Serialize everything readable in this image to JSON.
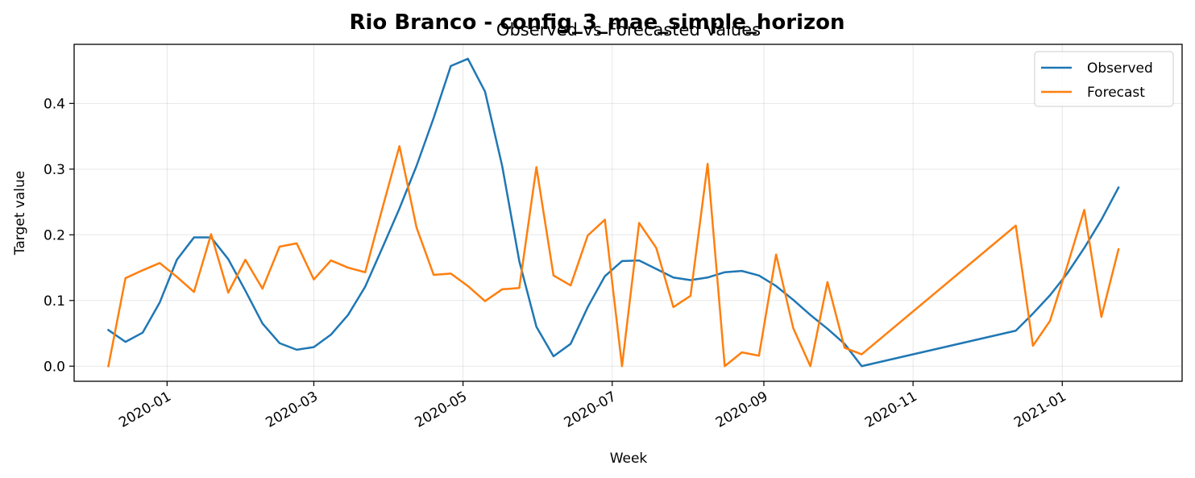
{
  "figure": {
    "suptitle": "Rio Branco - config_3_mae_simple_horizon",
    "title": "Observed vs Forecasted Values"
  },
  "chart_data": {
    "type": "line",
    "xlabel": "Week",
    "ylabel": "Target value",
    "x_axis_type": "date",
    "xlim": [
      "2019-11-24",
      "2021-02-19"
    ],
    "ylim": [
      -0.023,
      0.49
    ],
    "x_ticks": [
      "2020-01-01",
      "2020-03-01",
      "2020-05-01",
      "2020-07-01",
      "2020-09-01",
      "2020-11-01",
      "2021-01-01"
    ],
    "x_tick_labels": [
      "2020-01",
      "2020-03",
      "2020-05",
      "2020-07",
      "2020-09",
      "2020-11",
      "2021-01"
    ],
    "y_ticks": [
      0.0,
      0.1,
      0.2,
      0.3,
      0.4
    ],
    "y_tick_labels": [
      "0.0",
      "0.1",
      "0.2",
      "0.3",
      "0.4"
    ],
    "grid": true,
    "legend_position": "upper right",
    "series": [
      {
        "name": "Observed",
        "color": "#1f77b4",
        "x": [
          "2019-12-08",
          "2019-12-15",
          "2019-12-22",
          "2019-12-29",
          "2020-01-05",
          "2020-01-12",
          "2020-01-19",
          "2020-01-26",
          "2020-02-02",
          "2020-02-09",
          "2020-02-16",
          "2020-02-23",
          "2020-03-01",
          "2020-03-08",
          "2020-03-15",
          "2020-03-22",
          "2020-03-29",
          "2020-04-05",
          "2020-04-12",
          "2020-04-19",
          "2020-04-26",
          "2020-05-03",
          "2020-05-10",
          "2020-05-17",
          "2020-05-24",
          "2020-05-31",
          "2020-06-07",
          "2020-06-14",
          "2020-06-21",
          "2020-06-28",
          "2020-07-05",
          "2020-07-12",
          "2020-07-19",
          "2020-07-26",
          "2020-08-02",
          "2020-08-09",
          "2020-08-16",
          "2020-08-23",
          "2020-08-30",
          "2020-09-06",
          "2020-09-13",
          "2020-09-20",
          "2020-09-27",
          "2020-10-04",
          "2020-10-11",
          "2020-12-13",
          "2020-12-20",
          "2020-12-27",
          "2021-01-03",
          "2021-01-10",
          "2021-01-17",
          "2021-01-24"
        ],
        "values": [
          0.055,
          0.037,
          0.051,
          0.097,
          0.162,
          0.196,
          0.196,
          0.163,
          0.115,
          0.065,
          0.035,
          0.025,
          0.029,
          0.048,
          0.078,
          0.121,
          0.18,
          0.24,
          0.305,
          0.378,
          0.457,
          0.468,
          0.418,
          0.305,
          0.16,
          0.06,
          0.015,
          0.034,
          0.09,
          0.137,
          0.16,
          0.161,
          0.148,
          0.135,
          0.131,
          0.135,
          0.143,
          0.145,
          0.138,
          0.122,
          0.101,
          0.078,
          0.057,
          0.034,
          0.0,
          0.054,
          0.08,
          0.108,
          0.141,
          0.18,
          0.223,
          0.272
        ]
      },
      {
        "name": "Forecast",
        "color": "#ff7f0e",
        "x": [
          "2019-12-08",
          "2019-12-15",
          "2019-12-22",
          "2019-12-29",
          "2020-01-05",
          "2020-01-12",
          "2020-01-19",
          "2020-01-26",
          "2020-02-02",
          "2020-02-09",
          "2020-02-16",
          "2020-02-23",
          "2020-03-01",
          "2020-03-08",
          "2020-03-15",
          "2020-03-22",
          "2020-03-29",
          "2020-04-05",
          "2020-04-12",
          "2020-04-19",
          "2020-04-26",
          "2020-05-03",
          "2020-05-10",
          "2020-05-17",
          "2020-05-24",
          "2020-05-31",
          "2020-06-07",
          "2020-06-14",
          "2020-06-21",
          "2020-06-28",
          "2020-07-05",
          "2020-07-12",
          "2020-07-19",
          "2020-07-26",
          "2020-08-02",
          "2020-08-09",
          "2020-08-16",
          "2020-08-23",
          "2020-08-30",
          "2020-09-06",
          "2020-09-13",
          "2020-09-20",
          "2020-09-27",
          "2020-10-04",
          "2020-10-11",
          "2020-12-13",
          "2020-12-20",
          "2020-12-27",
          "2021-01-03",
          "2021-01-10",
          "2021-01-17",
          "2021-01-24"
        ],
        "values": [
          0.0,
          0.134,
          0.146,
          0.157,
          0.136,
          0.113,
          0.201,
          0.112,
          0.162,
          0.118,
          0.182,
          0.187,
          0.132,
          0.161,
          0.15,
          0.143,
          0.24,
          0.335,
          0.211,
          0.139,
          0.141,
          0.122,
          0.099,
          0.117,
          0.119,
          0.303,
          0.138,
          0.123,
          0.199,
          0.223,
          0.0,
          0.218,
          0.18,
          0.09,
          0.107,
          0.308,
          0.0,
          0.021,
          0.016,
          0.17,
          0.058,
          0.0,
          0.128,
          0.028,
          0.018,
          0.214,
          0.031,
          0.069,
          0.152,
          0.238,
          0.075,
          0.178
        ]
      }
    ]
  }
}
